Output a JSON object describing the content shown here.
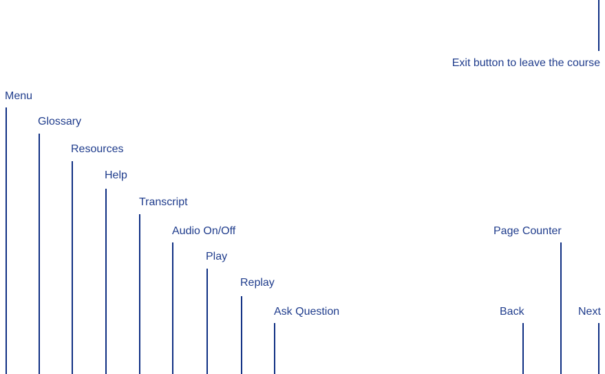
{
  "callouts": {
    "exit": "Exit button to leave the course",
    "menu": "Menu",
    "glossary": "Glossary",
    "resources": "Resources",
    "help": "Help",
    "transcript": "Transcript",
    "audio": "Audio On/Off",
    "play": "Play",
    "replay": "Replay",
    "ask_question": "Ask Question",
    "page_counter": "Page Counter",
    "back": "Back",
    "next": "Next"
  },
  "colors": {
    "text": "#1f3c8c",
    "line": "#0d2d82",
    "background": "#ffffff"
  }
}
